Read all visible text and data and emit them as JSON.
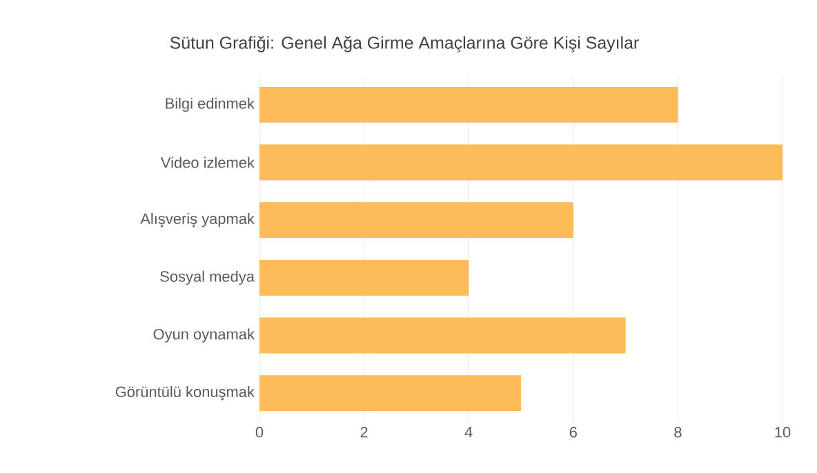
{
  "chart_data": {
    "type": "bar",
    "orientation": "horizontal",
    "title": "Sütun Grafiği: Genel Ağa Girme Amaçlarına Göre Kişi Sayılar",
    "categories": [
      "Bilgi edinmek",
      "Video izlemek",
      "Alışveriş yapmak",
      "Sosyal medya",
      "Oyun oynamak",
      "Görüntülü konuşmak"
    ],
    "values": [
      8,
      10,
      6,
      4,
      7,
      5
    ],
    "color": "#fdbb5a",
    "xlim": [
      0,
      10
    ],
    "xticks": [
      0,
      2,
      4,
      6,
      8,
      10
    ],
    "grid": "x"
  }
}
